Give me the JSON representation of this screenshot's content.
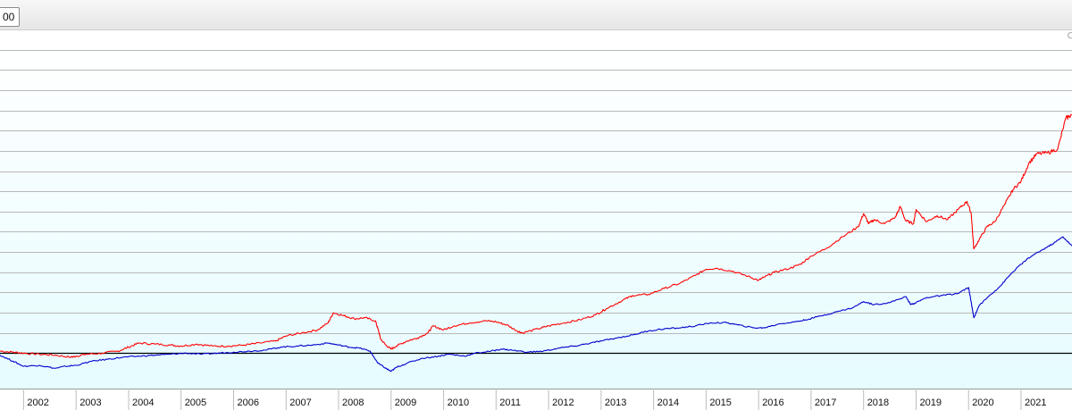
{
  "toolbar": {
    "zoom_button_label": "00"
  },
  "corner_glyph": "C",
  "chart_data": {
    "type": "line",
    "title": "",
    "xlabel": "",
    "ylabel": "",
    "grid": true,
    "baseline_color": "#000000",
    "background": "#eefdff",
    "x_ticks": [
      "2002",
      "2003",
      "2004",
      "2005",
      "2006",
      "2007",
      "2008",
      "2009",
      "2010",
      "2011",
      "2012",
      "2013",
      "2014",
      "2015",
      "2016",
      "2017",
      "2018",
      "2019",
      "2020",
      "2021"
    ],
    "xlim": [
      2001.55,
      2021.97
    ],
    "ylim": [
      -35,
      305
    ],
    "y_gridlines": [
      0,
      20,
      40,
      60,
      80,
      100,
      120,
      140,
      160,
      180,
      200,
      220,
      240,
      260,
      280,
      300
    ],
    "series": [
      {
        "color": "#ff0000",
        "points": [
          [
            2001.55,
            2
          ],
          [
            2001.8,
            1
          ],
          [
            2002.0,
            0
          ],
          [
            2002.3,
            -1
          ],
          [
            2002.6,
            -2
          ],
          [
            2002.9,
            -4
          ],
          [
            2003.0,
            -3
          ],
          [
            2003.2,
            -1
          ],
          [
            2003.5,
            0
          ],
          [
            2003.8,
            2
          ],
          [
            2004.0,
            6
          ],
          [
            2004.2,
            10
          ],
          [
            2004.5,
            9
          ],
          [
            2004.8,
            8
          ],
          [
            2005.0,
            7
          ],
          [
            2005.3,
            9
          ],
          [
            2005.6,
            7
          ],
          [
            2005.9,
            7
          ],
          [
            2006.2,
            8
          ],
          [
            2006.5,
            10
          ],
          [
            2006.8,
            12
          ],
          [
            2007.0,
            17
          ],
          [
            2007.3,
            20
          ],
          [
            2007.6,
            23
          ],
          [
            2007.8,
            30
          ],
          [
            2007.9,
            40
          ],
          [
            2008.1,
            37
          ],
          [
            2008.3,
            34
          ],
          [
            2008.5,
            35
          ],
          [
            2008.7,
            32
          ],
          [
            2008.75,
            24
          ],
          [
            2008.8,
            14
          ],
          [
            2008.9,
            8
          ],
          [
            2009.0,
            4
          ],
          [
            2009.1,
            7
          ],
          [
            2009.3,
            12
          ],
          [
            2009.5,
            15
          ],
          [
            2009.7,
            20
          ],
          [
            2009.8,
            27
          ],
          [
            2010.0,
            23
          ],
          [
            2010.2,
            27
          ],
          [
            2010.5,
            30
          ],
          [
            2010.8,
            32
          ],
          [
            2011.0,
            31
          ],
          [
            2011.2,
            28
          ],
          [
            2011.4,
            22
          ],
          [
            2011.5,
            20
          ],
          [
            2011.8,
            24
          ],
          [
            2012.0,
            27
          ],
          [
            2012.3,
            30
          ],
          [
            2012.6,
            33
          ],
          [
            2012.9,
            38
          ],
          [
            2013.1,
            44
          ],
          [
            2013.4,
            52
          ],
          [
            2013.6,
            57
          ],
          [
            2013.9,
            58
          ],
          [
            2014.2,
            64
          ],
          [
            2014.5,
            69
          ],
          [
            2014.8,
            77
          ],
          [
            2015.0,
            83
          ],
          [
            2015.2,
            84
          ],
          [
            2015.5,
            81
          ],
          [
            2015.8,
            76
          ],
          [
            2016.0,
            72
          ],
          [
            2016.1,
            75
          ],
          [
            2016.3,
            80
          ],
          [
            2016.6,
            84
          ],
          [
            2016.8,
            88
          ],
          [
            2017.0,
            96
          ],
          [
            2017.3,
            104
          ],
          [
            2017.6,
            115
          ],
          [
            2017.9,
            125
          ],
          [
            2018.0,
            138
          ],
          [
            2018.1,
            128
          ],
          [
            2018.2,
            132
          ],
          [
            2018.4,
            128
          ],
          [
            2018.6,
            134
          ],
          [
            2018.7,
            145
          ],
          [
            2018.8,
            131
          ],
          [
            2018.95,
            128
          ],
          [
            2019.0,
            142
          ],
          [
            2019.2,
            130
          ],
          [
            2019.4,
            136
          ],
          [
            2019.6,
            132
          ],
          [
            2019.8,
            142
          ],
          [
            2019.97,
            150
          ],
          [
            2020.05,
            138
          ],
          [
            2020.1,
            103
          ],
          [
            2020.2,
            112
          ],
          [
            2020.35,
            125
          ],
          [
            2020.5,
            130
          ],
          [
            2020.7,
            148
          ],
          [
            2020.85,
            162
          ],
          [
            2021.0,
            170
          ],
          [
            2021.15,
            188
          ],
          [
            2021.3,
            197
          ],
          [
            2021.5,
            198
          ],
          [
            2021.7,
            202
          ],
          [
            2021.85,
            232
          ],
          [
            2021.97,
            236
          ]
        ]
      },
      {
        "color": "#0000cc",
        "points": [
          [
            2001.55,
            -2
          ],
          [
            2001.8,
            -8
          ],
          [
            2002.0,
            -13
          ],
          [
            2002.3,
            -12
          ],
          [
            2002.6,
            -15
          ],
          [
            2002.8,
            -13
          ],
          [
            2003.0,
            -12
          ],
          [
            2003.3,
            -8
          ],
          [
            2003.6,
            -6
          ],
          [
            2003.9,
            -4
          ],
          [
            2004.2,
            -3
          ],
          [
            2004.5,
            -2
          ],
          [
            2004.8,
            -1
          ],
          [
            2005.1,
            0
          ],
          [
            2005.4,
            -1
          ],
          [
            2005.7,
            0
          ],
          [
            2006.0,
            1
          ],
          [
            2006.3,
            2
          ],
          [
            2006.6,
            3
          ],
          [
            2006.9,
            6
          ],
          [
            2007.2,
            7
          ],
          [
            2007.5,
            8
          ],
          [
            2007.8,
            10
          ],
          [
            2008.0,
            8
          ],
          [
            2008.2,
            6
          ],
          [
            2008.4,
            5
          ],
          [
            2008.6,
            2
          ],
          [
            2008.75,
            -10
          ],
          [
            2008.9,
            -15
          ],
          [
            2009.0,
            -18
          ],
          [
            2009.1,
            -14
          ],
          [
            2009.3,
            -10
          ],
          [
            2009.6,
            -5
          ],
          [
            2009.9,
            -3
          ],
          [
            2010.1,
            -1
          ],
          [
            2010.4,
            -3
          ],
          [
            2010.6,
            0
          ],
          [
            2010.9,
            2
          ],
          [
            2011.1,
            4
          ],
          [
            2011.3,
            3
          ],
          [
            2011.6,
            1
          ],
          [
            2011.9,
            2
          ],
          [
            2012.2,
            5
          ],
          [
            2012.5,
            7
          ],
          [
            2012.8,
            10
          ],
          [
            2013.0,
            12
          ],
          [
            2013.3,
            15
          ],
          [
            2013.6,
            18
          ],
          [
            2013.9,
            22
          ],
          [
            2014.2,
            24
          ],
          [
            2014.5,
            25
          ],
          [
            2014.8,
            27
          ],
          [
            2015.1,
            30
          ],
          [
            2015.4,
            30
          ],
          [
            2015.6,
            28
          ],
          [
            2015.9,
            25
          ],
          [
            2016.1,
            25
          ],
          [
            2016.4,
            29
          ],
          [
            2016.7,
            31
          ],
          [
            2016.9,
            33
          ],
          [
            2017.2,
            37
          ],
          [
            2017.5,
            41
          ],
          [
            2017.8,
            45
          ],
          [
            2018.0,
            51
          ],
          [
            2018.2,
            48
          ],
          [
            2018.5,
            50
          ],
          [
            2018.8,
            56
          ],
          [
            2018.9,
            48
          ],
          [
            2019.0,
            50
          ],
          [
            2019.2,
            55
          ],
          [
            2019.5,
            57
          ],
          [
            2019.8,
            59
          ],
          [
            2020.0,
            65
          ],
          [
            2020.1,
            35
          ],
          [
            2020.2,
            47
          ],
          [
            2020.4,
            57
          ],
          [
            2020.6,
            66
          ],
          [
            2020.8,
            78
          ],
          [
            2021.0,
            88
          ],
          [
            2021.2,
            96
          ],
          [
            2021.4,
            102
          ],
          [
            2021.6,
            108
          ],
          [
            2021.8,
            115
          ],
          [
            2021.97,
            106
          ]
        ]
      }
    ]
  }
}
